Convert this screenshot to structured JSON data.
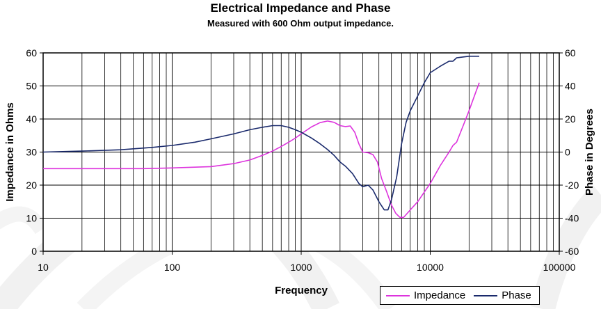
{
  "chart_data": {
    "type": "line",
    "title": "Electrical Impedance and Phase",
    "subtitle": "Measured with 600 Ohm output impedance.",
    "xlabel": "Frequency",
    "ylabel": "Impedance in Ohms",
    "y2label": "Phase in Degrees",
    "x_scale": "log",
    "xlim": [
      10,
      100000
    ],
    "ylim": [
      0,
      60
    ],
    "y2lim": [
      -60,
      60
    ],
    "x_ticks": [
      "10",
      "100",
      "1000",
      "10000",
      "100000"
    ],
    "y_ticks": [
      "0",
      "10",
      "20",
      "30",
      "40",
      "50",
      "60"
    ],
    "y2_ticks": [
      "-60",
      "-40",
      "-20",
      "0",
      "20",
      "40",
      "60"
    ],
    "grid": true,
    "legend_position": "bottom-right",
    "series": [
      {
        "name": "Impedance",
        "axis": "left",
        "color": "#dd33dd",
        "points": [
          [
            10,
            25
          ],
          [
            30,
            25
          ],
          [
            60,
            25
          ],
          [
            100,
            25.2
          ],
          [
            200,
            25.6
          ],
          [
            300,
            26.5
          ],
          [
            400,
            27.6
          ],
          [
            500,
            29
          ],
          [
            600,
            30.3
          ],
          [
            700,
            31.7
          ],
          [
            800,
            33
          ],
          [
            900,
            34.2
          ],
          [
            1000,
            35.5
          ],
          [
            1200,
            37.6
          ],
          [
            1400,
            38.9
          ],
          [
            1600,
            39.4
          ],
          [
            1800,
            39
          ],
          [
            2000,
            38
          ],
          [
            2200,
            37.7
          ],
          [
            2400,
            37.9
          ],
          [
            2600,
            36
          ],
          [
            2800,
            32.5
          ],
          [
            3000,
            30
          ],
          [
            3300,
            29.8
          ],
          [
            3600,
            29.2
          ],
          [
            3900,
            27
          ],
          [
            4200,
            22
          ],
          [
            4600,
            18
          ],
          [
            5000,
            14
          ],
          [
            5400,
            11.5
          ],
          [
            5800,
            10.3
          ],
          [
            6200,
            10.2
          ],
          [
            7000,
            12.5
          ],
          [
            8000,
            15
          ],
          [
            10000,
            20.5
          ],
          [
            12000,
            26
          ],
          [
            14000,
            30
          ],
          [
            15000,
            32
          ],
          [
            16000,
            33
          ],
          [
            18000,
            38
          ],
          [
            20000,
            42.5
          ],
          [
            22000,
            47
          ],
          [
            24000,
            51
          ]
        ]
      },
      {
        "name": "Phase",
        "axis": "right",
        "color": "#1a2a6c",
        "points": [
          [
            10,
            0
          ],
          [
            20,
            0.6
          ],
          [
            40,
            1.4
          ],
          [
            70,
            2.8
          ],
          [
            100,
            4
          ],
          [
            150,
            6
          ],
          [
            200,
            8
          ],
          [
            300,
            11
          ],
          [
            400,
            13.5
          ],
          [
            500,
            15
          ],
          [
            600,
            16
          ],
          [
            700,
            16
          ],
          [
            800,
            15
          ],
          [
            900,
            13.5
          ],
          [
            1000,
            12
          ],
          [
            1200,
            8.5
          ],
          [
            1400,
            5
          ],
          [
            1600,
            1.5
          ],
          [
            1800,
            -2
          ],
          [
            2000,
            -6
          ],
          [
            2200,
            -8.5
          ],
          [
            2500,
            -13
          ],
          [
            2800,
            -19
          ],
          [
            3000,
            -21
          ],
          [
            3300,
            -20
          ],
          [
            3600,
            -23
          ],
          [
            4000,
            -30
          ],
          [
            4400,
            -35
          ],
          [
            4700,
            -35
          ],
          [
            5000,
            -29
          ],
          [
            5500,
            -15
          ],
          [
            6000,
            5
          ],
          [
            6500,
            18
          ],
          [
            7000,
            25
          ],
          [
            8000,
            34
          ],
          [
            9000,
            42
          ],
          [
            10000,
            48
          ],
          [
            12000,
            52
          ],
          [
            14000,
            55
          ],
          [
            15000,
            55
          ],
          [
            16000,
            57
          ],
          [
            20000,
            58
          ],
          [
            24000,
            58
          ]
        ]
      }
    ]
  }
}
